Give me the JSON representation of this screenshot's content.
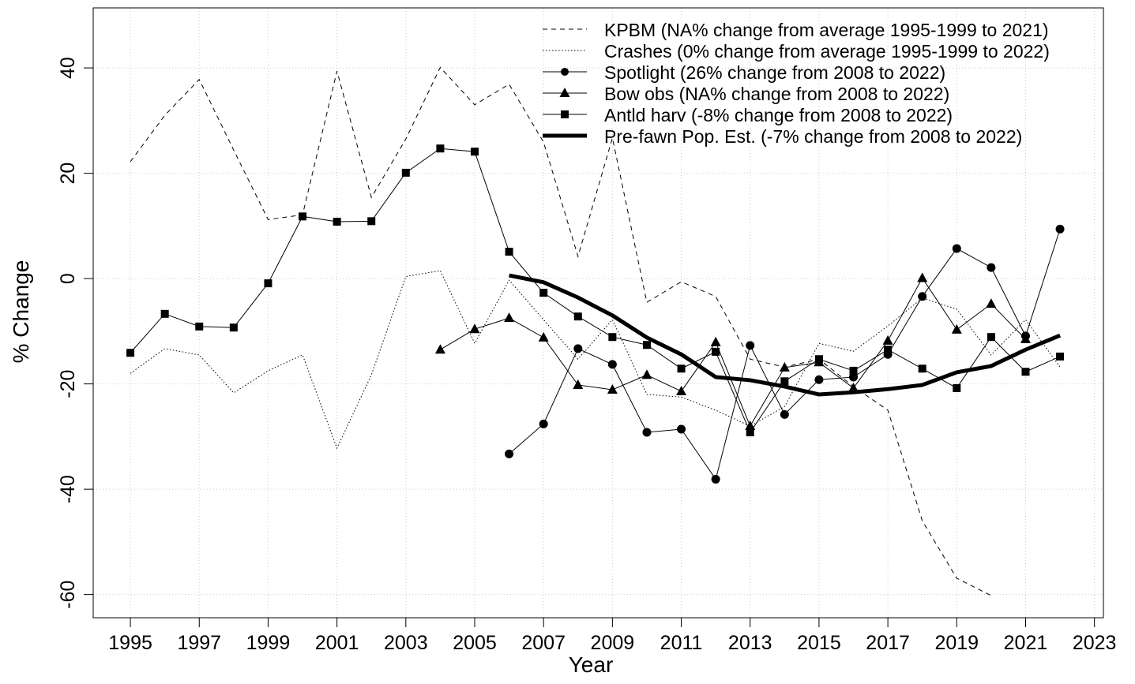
{
  "chart_data": {
    "type": "line",
    "x_label": "Year",
    "y_label": "% Change",
    "x": [
      1995,
      1996,
      1997,
      1998,
      1999,
      2000,
      2001,
      2002,
      2003,
      2004,
      2005,
      2006,
      2007,
      2008,
      2009,
      2010,
      2011,
      2012,
      2013,
      2014,
      2015,
      2016,
      2017,
      2018,
      2019,
      2020,
      2021,
      2022
    ],
    "series": [
      {
        "name": "KPBM (NA% change from average 1995-1999 to 2021)",
        "color": "#000000",
        "line_style": "dashed",
        "line_width": 1,
        "marker": "none",
        "values": [
          22.2,
          31,
          37.8,
          24.4,
          11.2,
          12.1,
          39.4,
          15.4,
          26.5,
          40.1,
          33,
          36.9,
          25.9,
          4.2,
          26.7,
          -4.5,
          -0.6,
          -3.4,
          -15.3,
          -16.8,
          -15.3,
          -20.5,
          -25,
          -46,
          -56.9,
          -60.2,
          null,
          null
        ]
      },
      {
        "name": "Crashes (0% change from average 1995-1999 to 2022)",
        "color": "#000000",
        "line_style": "dotted",
        "line_width": 1,
        "marker": "none",
        "values": [
          -18,
          -13.3,
          -14.5,
          -21.7,
          -17.5,
          -14.5,
          -32.2,
          -18.3,
          0.4,
          1.5,
          -12.3,
          -0.3,
          -7.8,
          -15.3,
          -7.8,
          -22,
          -22.5,
          -25,
          -28,
          -24.3,
          -12.3,
          -13.8,
          -9,
          -3.7,
          -5.8,
          -14.5,
          -7.8,
          -16.8
        ]
      },
      {
        "name": "Spotlight (26% change from 2008 to 2022)",
        "color": "#000000",
        "line_style": "solid",
        "line_width": 1,
        "marker": "circle",
        "values": [
          null,
          null,
          null,
          null,
          null,
          null,
          null,
          null,
          null,
          null,
          null,
          -33.3,
          -27.6,
          -13.3,
          -16.3,
          -29.2,
          -28.6,
          -38.1,
          -12.7,
          -25.8,
          -19.2,
          -18.7,
          -14.4,
          -3.4,
          5.7,
          2.1,
          -10.9,
          9.4
        ]
      },
      {
        "name": "Bow obs (NA% change from 2008 to 2022)",
        "color": "#000000",
        "line_style": "solid",
        "line_width": 1,
        "marker": "triangle",
        "values": [
          null,
          null,
          null,
          null,
          null,
          null,
          null,
          null,
          null,
          -13.5,
          -9.6,
          -7.5,
          -11.2,
          -20.2,
          -21.1,
          -18.3,
          -21.4,
          -12.1,
          -28,
          -16.9,
          -15.9,
          -20.8,
          -11.8,
          0.1,
          -9.7,
          -4.8,
          -11.5,
          null
        ]
      },
      {
        "name": "Antld harv (-8% change from 2008 to 2022)",
        "color": "#000000",
        "line_style": "solid",
        "line_width": 1,
        "marker": "square",
        "values": [
          -14.1,
          -6.7,
          -9.1,
          -9.3,
          -0.9,
          11.8,
          10.8,
          10.9,
          20.1,
          24.7,
          24.1,
          5.1,
          -2.7,
          -7.2,
          -11.1,
          -12.6,
          -17.1,
          -13.9,
          -29.2,
          -19.5,
          -15.3,
          -17.5,
          -13.5,
          -17.1,
          -20.8,
          -11.1,
          -17.7,
          -14.8
        ]
      },
      {
        "name": "Pre-fawn Pop. Est. (-7% change from 2008 to 2022)",
        "color": "#000000",
        "line_style": "solid",
        "line_width": 5,
        "marker": "none",
        "values": [
          null,
          null,
          null,
          null,
          null,
          null,
          null,
          null,
          null,
          null,
          null,
          0.6,
          -0.7,
          -3.6,
          -7,
          -11.2,
          -14.4,
          -18.7,
          -19.3,
          -20.5,
          -22,
          -21.6,
          -21,
          -20.2,
          -17.8,
          -16.6,
          -13.5,
          -10.8
        ]
      }
    ],
    "xlim": [
      1993.92,
      2023.26
    ],
    "ylim": [
      -64.4,
      51.4
    ],
    "xticks": [
      1995,
      1997,
      1999,
      2001,
      2003,
      2005,
      2007,
      2009,
      2011,
      2013,
      2015,
      2017,
      2019,
      2021,
      2023
    ],
    "yticks": [
      -60,
      -40,
      -20,
      0,
      20,
      40
    ],
    "grid": true,
    "legend": "top-right"
  }
}
